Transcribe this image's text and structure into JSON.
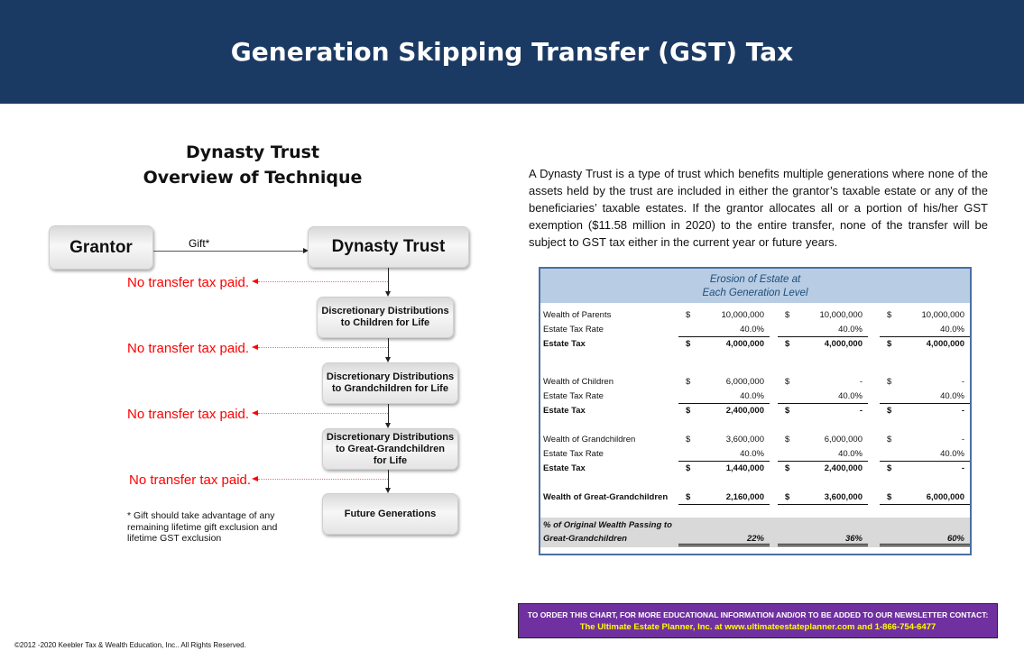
{
  "header": {
    "title": "Generation Skipping Transfer (GST) Tax"
  },
  "subtitle": {
    "line1": "Dynasty Trust",
    "line2": "Overview of Technique"
  },
  "flow": {
    "grantor": "Grantor",
    "gift_label": "Gift*",
    "dynasty": "Dynasty Trust",
    "children": [
      "Discretionary Distributions",
      "to Children for Life"
    ],
    "grandchildren": [
      "Discretionary Distributions",
      "to Grandchildren for Life"
    ],
    "greatgrand": [
      "Discretionary Distributions",
      "to Great-Grandchildren",
      "for Life"
    ],
    "future": "Future Generations",
    "no_tax": "No transfer tax paid.",
    "note": "* Gift should take advantage of any remaining lifetime gift exclusion and lifetime GST exclusion"
  },
  "description": "A Dynasty Trust is a type of trust which benefits multiple generations where none of the assets held by the trust are included in either the grantor’s taxable estate or any of the beneficiaries’ taxable estates. If the grantor allocates all or a portion of his/her GST exemption ($11.58 million in 2020) to the entire transfer, none of the transfer will be subject to GST tax either in the current year or future years.",
  "table": {
    "title1": "Erosion of Estate at",
    "title2": "Each Generation Level",
    "rows": [
      {
        "label": "Wealth of  Parents",
        "vals": [
          [
            "$",
            "10,000,000"
          ],
          [
            "$",
            "10,000,000"
          ],
          [
            "$",
            "10,000,000"
          ]
        ]
      },
      {
        "label": "Estate Tax Rate",
        "vals": [
          [
            "",
            "40.0%"
          ],
          [
            "",
            "40.0%"
          ],
          [
            "",
            "40.0%"
          ]
        ]
      },
      {
        "label": "Estate Tax",
        "vals": [
          [
            "$",
            "4,000,000"
          ],
          [
            "$",
            "4,000,000"
          ],
          [
            "$",
            "4,000,000"
          ]
        ]
      },
      {
        "label": "Wealth of Children",
        "vals": [
          [
            "$",
            "6,000,000"
          ],
          [
            "$",
            "-"
          ],
          [
            "$",
            "-"
          ]
        ]
      },
      {
        "label": "Estate Tax Rate",
        "vals": [
          [
            "",
            "40.0%"
          ],
          [
            "",
            "40.0%"
          ],
          [
            "",
            "40.0%"
          ]
        ]
      },
      {
        "label": "Estate Tax",
        "vals": [
          [
            "$",
            "2,400,000"
          ],
          [
            "$",
            "-"
          ],
          [
            "$",
            "-"
          ]
        ]
      },
      {
        "label": "Wealth of Grandchildren",
        "vals": [
          [
            "$",
            "3,600,000"
          ],
          [
            "$",
            "6,000,000"
          ],
          [
            "$",
            "-"
          ]
        ]
      },
      {
        "label": "Estate Tax Rate",
        "vals": [
          [
            "",
            "40.0%"
          ],
          [
            "",
            "40.0%"
          ],
          [
            "",
            "40.0%"
          ]
        ]
      },
      {
        "label": "Estate Tax",
        "vals": [
          [
            "$",
            "1,440,000"
          ],
          [
            "$",
            "2,400,000"
          ],
          [
            "$",
            "-"
          ]
        ]
      },
      {
        "label": "Wealth of Great-Grandchildren",
        "vals": [
          [
            "$",
            "2,160,000"
          ],
          [
            "$",
            "3,600,000"
          ],
          [
            "$",
            "6,000,000"
          ]
        ]
      }
    ],
    "pct_label1": "% of Original Wealth Passing to",
    "pct_label2": "Great-Grandchildren",
    "pct": [
      "22%",
      "36%",
      "60%"
    ]
  },
  "footer": {
    "line1": "TO ORDER THIS CHART, FOR MORE EDUCATIONAL INFORMATION AND/OR TO BE ADDED TO OUR NEWSLETTER CONTACT:",
    "line2": "The Ultimate Estate Planner, Inc. at www.ultimateestateplanner.com and 1-866-754-6477"
  },
  "copyright": "©2012 -2020 Keebler Tax & Wealth Education, Inc.. All Rights Reserved.",
  "colors": {
    "banner": "#1b3a63",
    "footer": "#7030a0",
    "footer_link": "#ffff00",
    "no_tax": "#ff0000",
    "table_header": "#b8cce4"
  }
}
